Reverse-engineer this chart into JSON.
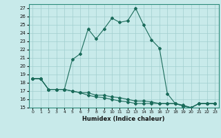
{
  "title": "",
  "xlabel": "Humidex (Indice chaleur)",
  "bg_color": "#c8eaea",
  "line_color": "#1a6b5a",
  "grid_color": "#a0cece",
  "xlim": [
    -0.5,
    23.5
  ],
  "ylim": [
    15,
    27.5
  ],
  "yticks": [
    15,
    16,
    17,
    18,
    19,
    20,
    21,
    22,
    23,
    24,
    25,
    26,
    27
  ],
  "xticks": [
    0,
    1,
    2,
    3,
    4,
    5,
    6,
    7,
    8,
    9,
    10,
    11,
    12,
    13,
    14,
    15,
    16,
    17,
    18,
    19,
    20,
    21,
    22,
    23
  ],
  "series": [
    {
      "x": [
        0,
        1,
        2,
        3,
        4,
        5,
        6,
        7,
        8,
        9,
        10,
        11,
        12,
        13,
        14,
        15,
        16,
        17,
        18,
        19,
        20,
        21,
        22,
        23
      ],
      "y": [
        18.5,
        18.5,
        17.2,
        17.2,
        17.2,
        20.8,
        21.5,
        24.5,
        23.3,
        24.5,
        25.8,
        25.3,
        25.5,
        27.0,
        25.0,
        23.2,
        22.2,
        16.7,
        15.5,
        15.3,
        15.0,
        15.5,
        15.5,
        15.5
      ]
    },
    {
      "x": [
        0,
        1,
        2,
        3,
        4,
        5,
        6,
        7,
        8,
        9,
        10,
        11,
        12,
        13,
        14,
        15,
        16,
        17,
        18,
        19,
        20,
        21,
        22,
        23
      ],
      "y": [
        18.5,
        18.5,
        17.2,
        17.2,
        17.2,
        17.0,
        16.8,
        16.8,
        16.5,
        16.5,
        16.3,
        16.2,
        16.0,
        15.8,
        15.8,
        15.7,
        15.5,
        15.5,
        15.5,
        15.2,
        15.0,
        15.5,
        15.5,
        15.5
      ]
    },
    {
      "x": [
        0,
        1,
        2,
        3,
        4,
        5,
        6,
        7,
        8,
        9,
        10,
        11,
        12,
        13,
        14,
        15,
        16,
        17,
        18,
        19,
        20,
        21,
        22,
        23
      ],
      "y": [
        18.5,
        18.5,
        17.2,
        17.2,
        17.2,
        17.0,
        16.8,
        16.5,
        16.3,
        16.2,
        16.0,
        15.8,
        15.7,
        15.5,
        15.5,
        15.5,
        15.5,
        15.5,
        15.5,
        15.2,
        15.0,
        15.5,
        15.5,
        15.5
      ]
    }
  ]
}
